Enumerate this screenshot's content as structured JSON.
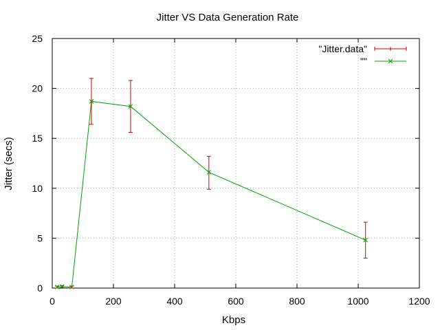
{
  "chart_data": {
    "type": "line",
    "title": "Jitter VS Data Generation Rate",
    "xlabel": "Kbps",
    "ylabel": "Jitter (secs)",
    "xlim": [
      0,
      1200
    ],
    "ylim": [
      0,
      25
    ],
    "x_ticks": [
      "0",
      "200",
      "400",
      "600",
      "800",
      "1000",
      "1200"
    ],
    "y_ticks": [
      "0",
      "5",
      "10",
      "15",
      "20",
      "25"
    ],
    "grid": true,
    "legend_position": "top-right",
    "series": [
      {
        "name": "\"Jitter.data\"",
        "style": "errorbars",
        "color": "#cc0000",
        "points": [
          {
            "x": 16,
            "y": 0.1,
            "ylow": 0.0,
            "yhigh": 0.2
          },
          {
            "x": 32,
            "y": 0.15,
            "ylow": 0.05,
            "yhigh": 0.25
          },
          {
            "x": 64,
            "y": 0.1,
            "ylow": 0.0,
            "yhigh": 0.2
          },
          {
            "x": 128,
            "y": 18.7,
            "ylow": 16.4,
            "yhigh": 21.0
          },
          {
            "x": 256,
            "y": 18.2,
            "ylow": 15.6,
            "yhigh": 20.8
          },
          {
            "x": 512,
            "y": 11.6,
            "ylow": 9.9,
            "yhigh": 13.2
          },
          {
            "x": 1024,
            "y": 4.8,
            "ylow": 3.0,
            "yhigh": 6.6
          }
        ]
      },
      {
        "name": "\"\"",
        "style": "linespoints",
        "color": "#00a000",
        "points": [
          {
            "x": 16,
            "y": 0.1
          },
          {
            "x": 32,
            "y": 0.15
          },
          {
            "x": 64,
            "y": 0.1
          },
          {
            "x": 128,
            "y": 18.7
          },
          {
            "x": 256,
            "y": 18.2
          },
          {
            "x": 512,
            "y": 11.6
          },
          {
            "x": 1024,
            "y": 4.8
          }
        ]
      }
    ]
  }
}
